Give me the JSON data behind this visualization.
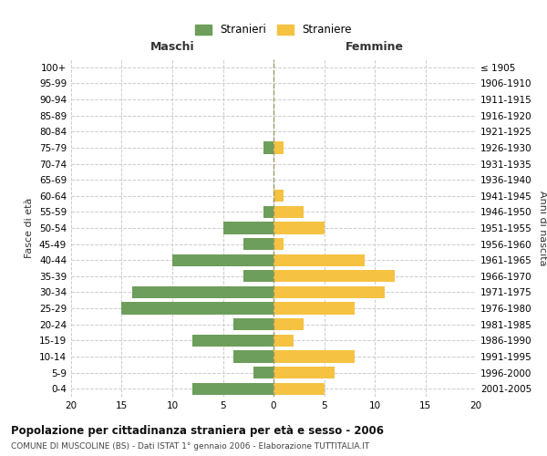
{
  "age_groups": [
    "100+",
    "95-99",
    "90-94",
    "85-89",
    "80-84",
    "75-79",
    "70-74",
    "65-69",
    "60-64",
    "55-59",
    "50-54",
    "45-49",
    "40-44",
    "35-39",
    "30-34",
    "25-29",
    "20-24",
    "15-19",
    "10-14",
    "5-9",
    "0-4"
  ],
  "birth_years": [
    "≤ 1905",
    "1906-1910",
    "1911-1915",
    "1916-1920",
    "1921-1925",
    "1926-1930",
    "1931-1935",
    "1936-1940",
    "1941-1945",
    "1946-1950",
    "1951-1955",
    "1956-1960",
    "1961-1965",
    "1966-1970",
    "1971-1975",
    "1976-1980",
    "1981-1985",
    "1986-1990",
    "1991-1995",
    "1996-2000",
    "2001-2005"
  ],
  "maschi": [
    0,
    0,
    0,
    0,
    0,
    1,
    0,
    0,
    0,
    1,
    5,
    3,
    10,
    3,
    14,
    15,
    4,
    8,
    4,
    2,
    8
  ],
  "femmine": [
    0,
    0,
    0,
    0,
    0,
    1,
    0,
    0,
    1,
    3,
    5,
    1,
    9,
    12,
    11,
    8,
    3,
    2,
    8,
    6,
    5
  ],
  "color_maschi": "#6d9e5b",
  "color_femmine": "#f5c242",
  "title": "Popolazione per cittadinanza straniera per età e sesso - 2006",
  "subtitle": "COMUNE DI MUSCOLINE (BS) - Dati ISTAT 1° gennaio 2006 - Elaborazione TUTTITALIA.IT",
  "xlabel_left": "Maschi",
  "xlabel_right": "Femmine",
  "ylabel_left": "Fasce di età",
  "ylabel_right": "Anni di nascita",
  "legend_maschi": "Stranieri",
  "legend_femmine": "Straniere",
  "xlim": 20,
  "background_color": "#ffffff",
  "grid_color": "#cccccc"
}
